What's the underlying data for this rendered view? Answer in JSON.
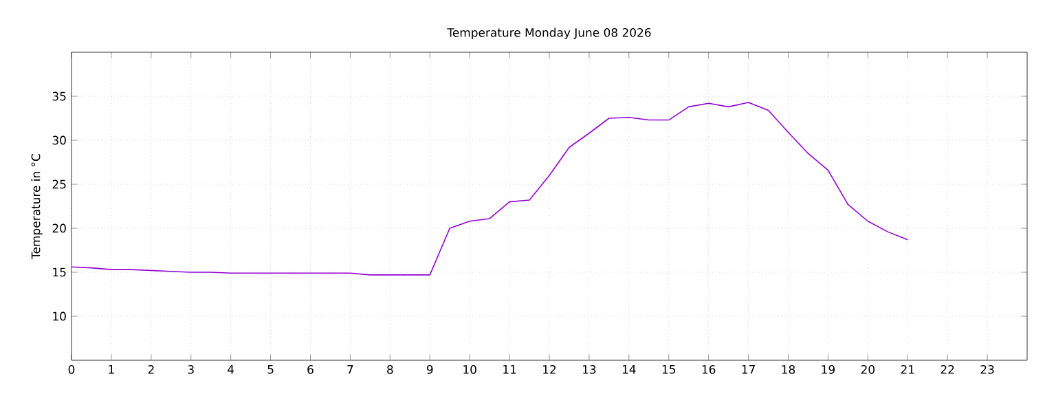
{
  "chart_data": {
    "type": "line",
    "title": "Temperature Monday June 08 2026",
    "ylabel": "Temperature in °C",
    "x": [
      0,
      0.5,
      1,
      1.5,
      2,
      2.5,
      3,
      3.5,
      4,
      4.5,
      5,
      5.5,
      6,
      6.5,
      7,
      7.5,
      8,
      8.5,
      9,
      9.5,
      10,
      10.5,
      11,
      11.5,
      12,
      12.5,
      13,
      13.5,
      14,
      14.5,
      15,
      15.5,
      16,
      16.5,
      17,
      17.5,
      18,
      18.5,
      19,
      19.5,
      20,
      20.5,
      21
    ],
    "series": [
      {
        "color": "#9400d3",
        "values": [
          15.6,
          15.5,
          15.3,
          15.3,
          15.2,
          15.1,
          15.0,
          15.0,
          14.9,
          14.9,
          14.9,
          14.9,
          14.9,
          14.9,
          14.9,
          14.7,
          14.7,
          14.7,
          14.7,
          20.0,
          20.8,
          21.1,
          23.0,
          23.2,
          26.0,
          29.2,
          30.8,
          32.5,
          32.6,
          32.3,
          32.3,
          33.8,
          34.2,
          33.8,
          34.3,
          33.4,
          30.9,
          28.5,
          26.6,
          22.7,
          20.8,
          19.6,
          18.7
        ]
      }
    ],
    "xlim": [
      0,
      24
    ],
    "xticks": [
      0,
      1,
      2,
      3,
      4,
      5,
      6,
      7,
      8,
      9,
      10,
      11,
      12,
      13,
      14,
      15,
      16,
      17,
      18,
      19,
      20,
      21,
      22,
      23
    ],
    "ylim": [
      5,
      40
    ],
    "yticks": [
      10,
      15,
      20,
      25,
      30,
      35
    ],
    "grid": true,
    "marker": "none",
    "line_style": "solid"
  }
}
